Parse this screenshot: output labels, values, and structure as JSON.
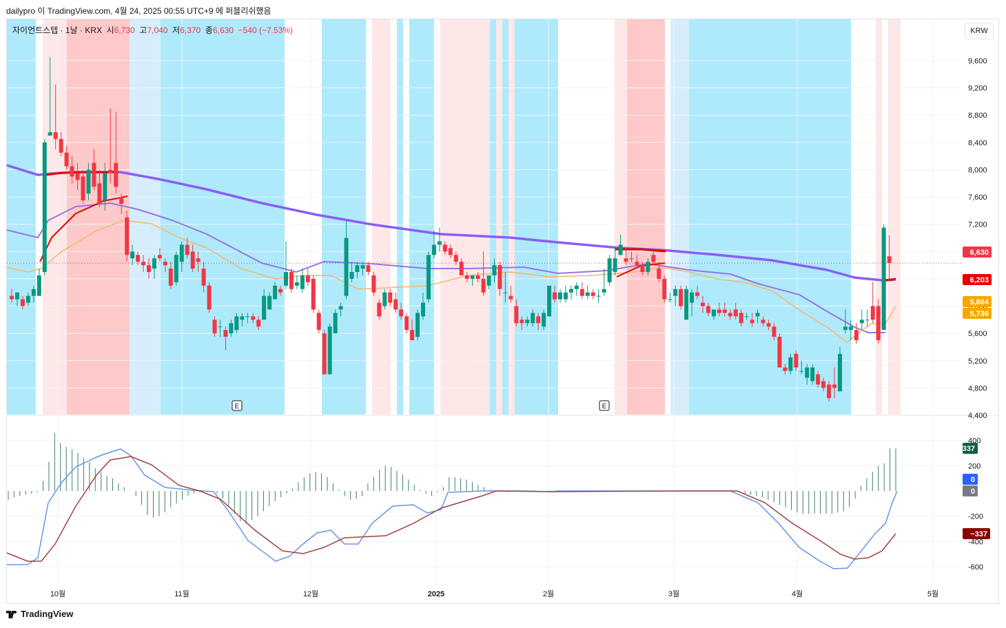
{
  "header": {
    "published_line": "dailypro 이 TradingView.com, 4월 24, 2025 00:55 UTC+9 에 퍼블리쉬했음"
  },
  "legend": {
    "symbol": "자이언트스텝 · 1날 · KRX",
    "open_label": "시",
    "open": "6,730",
    "high_label": "고",
    "high": "7,040",
    "low_label": "저",
    "low": "6,370",
    "close_label": "종",
    "close": "6,630",
    "change": "−540 (−7.53%)"
  },
  "currency": "KRW",
  "footer": {
    "brand": "TradingView"
  },
  "colors": {
    "up": "#089981",
    "down": "#f23645",
    "ma_long": "#8b5cf6",
    "ma_mid": "#9575e6",
    "ma_red": "#e60000",
    "ma_orange": "#f7b56b",
    "macd": "#6495ed",
    "signal": "#a0413d",
    "zone_cyan": "#aeeafc",
    "zone_lightblue": "#d6eefb",
    "zone_pink": "#fde7e7",
    "zone_red": "#fdc9c9"
  },
  "chart_data": [
    {
      "type": "candlestick",
      "title": "자이언트스텝 · 1날 · KRX",
      "x_labels": [
        "10월",
        "11월",
        "12월",
        "2025",
        "2월",
        "3월",
        "4월",
        "5월"
      ],
      "y_ticks": [
        "9,600",
        "9,200",
        "8,800",
        "8,400",
        "8,000",
        "7,600",
        "7,200",
        "6,800",
        "6,400",
        "6,000",
        "5,600",
        "5,200",
        "4,800",
        "4,400"
      ],
      "ylim": [
        4100,
        10200
      ],
      "price_tags": [
        {
          "label": "6,630",
          "color": "#f23645"
        },
        {
          "label": "6,203",
          "color": "#e60000"
        },
        {
          "label": "5,864",
          "color": "#f7a600"
        },
        {
          "label": "5,736",
          "color": "#f7a600"
        }
      ],
      "earnings_markers": [
        "E",
        "E"
      ],
      "candles": [
        {
          "o": 6150,
          "h": 6250,
          "l": 6050,
          "c": 6100
        },
        {
          "o": 6100,
          "h": 6200,
          "l": 6000,
          "c": 6200
        },
        {
          "o": 6100,
          "h": 6150,
          "l": 5950,
          "c": 6000
        },
        {
          "o": 6050,
          "h": 6200,
          "l": 6000,
          "c": 6150
        },
        {
          "o": 6150,
          "h": 6300,
          "l": 6050,
          "c": 6250
        },
        {
          "o": 6150,
          "h": 6550,
          "l": 6150,
          "c": 6450
        },
        {
          "o": 6500,
          "h": 8450,
          "l": 6450,
          "c": 8400
        },
        {
          "o": 8500,
          "h": 9650,
          "l": 8500,
          "c": 8550
        },
        {
          "o": 8550,
          "h": 9250,
          "l": 8300,
          "c": 8450
        },
        {
          "o": 8450,
          "h": 8550,
          "l": 8200,
          "c": 8250
        },
        {
          "o": 8250,
          "h": 8350,
          "l": 8000,
          "c": 8050
        },
        {
          "o": 8050,
          "h": 8200,
          "l": 7800,
          "c": 7900
        },
        {
          "o": 7950,
          "h": 8100,
          "l": 7700,
          "c": 7850
        },
        {
          "o": 7900,
          "h": 8000,
          "l": 7500,
          "c": 7550
        },
        {
          "o": 7650,
          "h": 8100,
          "l": 7550,
          "c": 8000
        },
        {
          "o": 8100,
          "h": 8300,
          "l": 7700,
          "c": 7750
        },
        {
          "o": 7800,
          "h": 8000,
          "l": 7450,
          "c": 7500
        },
        {
          "o": 7550,
          "h": 8100,
          "l": 7400,
          "c": 7950
        },
        {
          "o": 8000,
          "h": 8900,
          "l": 7800,
          "c": 7950
        },
        {
          "o": 8100,
          "h": 8850,
          "l": 7650,
          "c": 7750
        },
        {
          "o": 7600,
          "h": 7650,
          "l": 7350,
          "c": 7500
        },
        {
          "o": 7300,
          "h": 7400,
          "l": 6650,
          "c": 6750
        },
        {
          "o": 6700,
          "h": 6900,
          "l": 6600,
          "c": 6800
        },
        {
          "o": 6750,
          "h": 6800,
          "l": 6600,
          "c": 6650
        },
        {
          "o": 6650,
          "h": 6750,
          "l": 6500,
          "c": 6600
        },
        {
          "o": 6600,
          "h": 6700,
          "l": 6400,
          "c": 6500
        },
        {
          "o": 6550,
          "h": 6750,
          "l": 6400,
          "c": 6700
        },
        {
          "o": 6750,
          "h": 6850,
          "l": 6650,
          "c": 6700
        },
        {
          "o": 6650,
          "h": 6700,
          "l": 6500,
          "c": 6600
        },
        {
          "o": 6550,
          "h": 6650,
          "l": 6250,
          "c": 6300
        },
        {
          "o": 6350,
          "h": 6800,
          "l": 6300,
          "c": 6750
        },
        {
          "o": 6650,
          "h": 6950,
          "l": 6500,
          "c": 6900
        },
        {
          "o": 6900,
          "h": 7000,
          "l": 6700,
          "c": 6750
        },
        {
          "o": 6800,
          "h": 6900,
          "l": 6500,
          "c": 6550
        },
        {
          "o": 6700,
          "h": 6800,
          "l": 6500,
          "c": 6650
        },
        {
          "o": 6550,
          "h": 6650,
          "l": 6200,
          "c": 6300
        },
        {
          "o": 6300,
          "h": 6350,
          "l": 5900,
          "c": 5950
        },
        {
          "o": 5800,
          "h": 5850,
          "l": 5550,
          "c": 5600
        },
        {
          "o": 5700,
          "h": 5800,
          "l": 5550,
          "c": 5700
        },
        {
          "o": 5650,
          "h": 5700,
          "l": 5350,
          "c": 5550
        },
        {
          "o": 5600,
          "h": 5800,
          "l": 5550,
          "c": 5750
        },
        {
          "o": 5650,
          "h": 5900,
          "l": 5600,
          "c": 5850
        },
        {
          "o": 5800,
          "h": 5900,
          "l": 5700,
          "c": 5850
        },
        {
          "o": 5850,
          "h": 5900,
          "l": 5750,
          "c": 5850
        },
        {
          "o": 5850,
          "h": 5900,
          "l": 5750,
          "c": 5800
        },
        {
          "o": 5800,
          "h": 5850,
          "l": 5650,
          "c": 5700
        },
        {
          "o": 5800,
          "h": 6250,
          "l": 5800,
          "c": 6150
        },
        {
          "o": 5950,
          "h": 6200,
          "l": 5950,
          "c": 6150
        },
        {
          "o": 6100,
          "h": 6350,
          "l": 6100,
          "c": 6300
        },
        {
          "o": 6250,
          "h": 6300,
          "l": 6150,
          "c": 6200
        },
        {
          "o": 6300,
          "h": 6950,
          "l": 6250,
          "c": 6500
        },
        {
          "o": 6500,
          "h": 6550,
          "l": 6200,
          "c": 6250
        },
        {
          "o": 6300,
          "h": 6450,
          "l": 6250,
          "c": 6350
        },
        {
          "o": 6250,
          "h": 6550,
          "l": 6200,
          "c": 6450
        },
        {
          "o": 6450,
          "h": 6550,
          "l": 6300,
          "c": 6350
        },
        {
          "o": 6400,
          "h": 6450,
          "l": 5900,
          "c": 5950
        },
        {
          "o": 5900,
          "h": 5950,
          "l": 5600,
          "c": 5650
        },
        {
          "o": 5600,
          "h": 5650,
          "l": 5000,
          "c": 5000
        },
        {
          "o": 5000,
          "h": 5750,
          "l": 5000,
          "c": 5700
        },
        {
          "o": 5600,
          "h": 5950,
          "l": 5600,
          "c": 5900
        },
        {
          "o": 5950,
          "h": 6050,
          "l": 5850,
          "c": 6000
        },
        {
          "o": 6150,
          "h": 7250,
          "l": 6100,
          "c": 7000
        },
        {
          "o": 6400,
          "h": 6650,
          "l": 6350,
          "c": 6500
        },
        {
          "o": 6500,
          "h": 6650,
          "l": 6400,
          "c": 6600
        },
        {
          "o": 6550,
          "h": 6650,
          "l": 6450,
          "c": 6600
        },
        {
          "o": 6600,
          "h": 6650,
          "l": 6450,
          "c": 6500
        },
        {
          "o": 6450,
          "h": 6500,
          "l": 6150,
          "c": 6200
        },
        {
          "o": 6050,
          "h": 6100,
          "l": 5800,
          "c": 5850
        },
        {
          "o": 6000,
          "h": 6250,
          "l": 5950,
          "c": 6200
        },
        {
          "o": 6200,
          "h": 6250,
          "l": 6000,
          "c": 6050
        },
        {
          "o": 6100,
          "h": 6200,
          "l": 5900,
          "c": 5950
        },
        {
          "o": 5950,
          "h": 6050,
          "l": 5800,
          "c": 5850
        },
        {
          "o": 5850,
          "h": 5900,
          "l": 5600,
          "c": 5650
        },
        {
          "o": 5650,
          "h": 5800,
          "l": 5500,
          "c": 5500
        },
        {
          "o": 5550,
          "h": 5950,
          "l": 5500,
          "c": 5900
        },
        {
          "o": 5850,
          "h": 6200,
          "l": 5800,
          "c": 6050
        },
        {
          "o": 6100,
          "h": 6800,
          "l": 6050,
          "c": 6750
        },
        {
          "o": 6750,
          "h": 7100,
          "l": 6700,
          "c": 6900
        },
        {
          "o": 6900,
          "h": 7150,
          "l": 6800,
          "c": 6950
        },
        {
          "o": 6900,
          "h": 6950,
          "l": 6750,
          "c": 6800
        },
        {
          "o": 6850,
          "h": 6900,
          "l": 6700,
          "c": 6750
        },
        {
          "o": 6750,
          "h": 6800,
          "l": 6600,
          "c": 6650
        },
        {
          "o": 6650,
          "h": 6700,
          "l": 6450,
          "c": 6450
        },
        {
          "o": 6450,
          "h": 6500,
          "l": 6350,
          "c": 6400
        },
        {
          "o": 6400,
          "h": 6450,
          "l": 6300,
          "c": 6450
        },
        {
          "o": 6450,
          "h": 6500,
          "l": 6350,
          "c": 6400
        },
        {
          "o": 6400,
          "h": 6800,
          "l": 6150,
          "c": 6200
        },
        {
          "o": 6300,
          "h": 6450,
          "l": 6250,
          "c": 6450
        },
        {
          "o": 6450,
          "h": 6700,
          "l": 6350,
          "c": 6600
        },
        {
          "o": 6600,
          "h": 6650,
          "l": 6150,
          "c": 6250
        },
        {
          "o": 6200,
          "h": 6500,
          "l": 6050,
          "c": 6200
        },
        {
          "o": 6150,
          "h": 6300,
          "l": 6050,
          "c": 6100
        },
        {
          "o": 6000,
          "h": 6100,
          "l": 5700,
          "c": 5750
        },
        {
          "o": 5800,
          "h": 5850,
          "l": 5650,
          "c": 5750
        },
        {
          "o": 5750,
          "h": 5850,
          "l": 5700,
          "c": 5800
        },
        {
          "o": 5750,
          "h": 5950,
          "l": 5700,
          "c": 5900
        },
        {
          "o": 5850,
          "h": 5900,
          "l": 5650,
          "c": 5750
        },
        {
          "o": 5700,
          "h": 5950,
          "l": 5650,
          "c": 5900
        },
        {
          "o": 5850,
          "h": 6250,
          "l": 5850,
          "c": 6300
        },
        {
          "o": 6200,
          "h": 6300,
          "l": 6050,
          "c": 6100
        },
        {
          "o": 6100,
          "h": 6250,
          "l": 6050,
          "c": 6200
        },
        {
          "o": 6100,
          "h": 6300,
          "l": 6050,
          "c": 6200
        },
        {
          "o": 6200,
          "h": 6300,
          "l": 6100,
          "c": 6250
        },
        {
          "o": 6250,
          "h": 6350,
          "l": 6150,
          "c": 6300
        },
        {
          "o": 6250,
          "h": 6350,
          "l": 6100,
          "c": 6150
        },
        {
          "o": 6150,
          "h": 6300,
          "l": 6100,
          "c": 6200
        },
        {
          "o": 6200,
          "h": 6250,
          "l": 6100,
          "c": 6150
        },
        {
          "o": 6150,
          "h": 6250,
          "l": 6050,
          "c": 6150
        },
        {
          "o": 6200,
          "h": 6550,
          "l": 6150,
          "c": 6250
        },
        {
          "o": 6350,
          "h": 6750,
          "l": 6300,
          "c": 6700
        },
        {
          "o": 6500,
          "h": 6850,
          "l": 6450,
          "c": 6700
        },
        {
          "o": 6750,
          "h": 7050,
          "l": 6750,
          "c": 6900
        },
        {
          "o": 6700,
          "h": 6850,
          "l": 6600,
          "c": 6650
        },
        {
          "o": 6700,
          "h": 6800,
          "l": 6650,
          "c": 6700
        },
        {
          "o": 6650,
          "h": 6750,
          "l": 6550,
          "c": 6600
        },
        {
          "o": 6600,
          "h": 6650,
          "l": 6450,
          "c": 6500
        },
        {
          "o": 6500,
          "h": 6700,
          "l": 6450,
          "c": 6650
        },
        {
          "o": 6750,
          "h": 6800,
          "l": 6600,
          "c": 6650
        },
        {
          "o": 6550,
          "h": 6650,
          "l": 6350,
          "c": 6400
        },
        {
          "o": 6400,
          "h": 6450,
          "l": 6050,
          "c": 6100
        },
        {
          "o": 6100,
          "h": 6200,
          "l": 6050,
          "c": 6100
        },
        {
          "o": 6150,
          "h": 6300,
          "l": 6000,
          "c": 6250
        },
        {
          "o": 6250,
          "h": 6300,
          "l": 5950,
          "c": 6000
        },
        {
          "o": 5800,
          "h": 6300,
          "l": 5800,
          "c": 6250
        },
        {
          "o": 6050,
          "h": 6250,
          "l": 5850,
          "c": 6200
        },
        {
          "o": 6200,
          "h": 6300,
          "l": 6100,
          "c": 6150
        },
        {
          "o": 6050,
          "h": 6150,
          "l": 5900,
          "c": 6000
        },
        {
          "o": 6000,
          "h": 6050,
          "l": 5850,
          "c": 5900
        },
        {
          "o": 5850,
          "h": 5950,
          "l": 5800,
          "c": 5950
        },
        {
          "o": 5950,
          "h": 6050,
          "l": 5850,
          "c": 5900
        },
        {
          "o": 5950,
          "h": 6050,
          "l": 5850,
          "c": 5900
        },
        {
          "o": 5900,
          "h": 5950,
          "l": 5800,
          "c": 5850
        },
        {
          "o": 5950,
          "h": 6050,
          "l": 5800,
          "c": 5850
        },
        {
          "o": 5900,
          "h": 5950,
          "l": 5700,
          "c": 5750
        },
        {
          "o": 5850,
          "h": 5900,
          "l": 5800,
          "c": 5850
        },
        {
          "o": 5800,
          "h": 5900,
          "l": 5700,
          "c": 5750
        },
        {
          "o": 5850,
          "h": 5950,
          "l": 5750,
          "c": 5900
        },
        {
          "o": 5800,
          "h": 5850,
          "l": 5700,
          "c": 5750
        },
        {
          "o": 5750,
          "h": 5800,
          "l": 5650,
          "c": 5700
        },
        {
          "o": 5700,
          "h": 5750,
          "l": 5500,
          "c": 5550
        },
        {
          "o": 5550,
          "h": 5600,
          "l": 5100,
          "c": 5100
        },
        {
          "o": 5100,
          "h": 5150,
          "l": 5000,
          "c": 5050
        },
        {
          "o": 5050,
          "h": 5300,
          "l": 5000,
          "c": 5250
        },
        {
          "o": 5300,
          "h": 5350,
          "l": 5050,
          "c": 5100
        },
        {
          "o": 5050,
          "h": 5200,
          "l": 5000,
          "c": 5050
        },
        {
          "o": 4950,
          "h": 5150,
          "l": 4850,
          "c": 5100
        },
        {
          "o": 4900,
          "h": 5150,
          "l": 4850,
          "c": 5100
        },
        {
          "o": 5000,
          "h": 5050,
          "l": 4800,
          "c": 4850
        },
        {
          "o": 4900,
          "h": 4950,
          "l": 4750,
          "c": 4800
        },
        {
          "o": 4850,
          "h": 4900,
          "l": 4600,
          "c": 4650
        },
        {
          "o": 4850,
          "h": 5100,
          "l": 4650,
          "c": 4800
        },
        {
          "o": 4750,
          "h": 5400,
          "l": 4750,
          "c": 5300
        },
        {
          "o": 5650,
          "h": 5950,
          "l": 5600,
          "c": 5700
        },
        {
          "o": 5650,
          "h": 5800,
          "l": 5500,
          "c": 5700
        },
        {
          "o": 5650,
          "h": 5750,
          "l": 5450,
          "c": 5500
        },
        {
          "o": 5750,
          "h": 5950,
          "l": 5650,
          "c": 5800
        },
        {
          "o": 5800,
          "h": 5950,
          "l": 5700,
          "c": 5800
        },
        {
          "o": 6000,
          "h": 6350,
          "l": 5750,
          "c": 5800
        },
        {
          "o": 6000,
          "h": 6100,
          "l": 5450,
          "c": 5500
        },
        {
          "o": 5650,
          "h": 7200,
          "l": 5650,
          "c": 7150
        },
        {
          "o": 6730,
          "h": 7040,
          "l": 6370,
          "c": 6630
        }
      ]
    },
    {
      "type": "bar",
      "title": "",
      "y_ticks": [
        "400",
        "200",
        "-200",
        "-400",
        "-600"
      ],
      "ylim": [
        -730,
        450
      ],
      "value_tags": [
        {
          "label": "337",
          "color": "#0e5e48"
        },
        {
          "label": "0",
          "color": "#2962ff"
        },
        {
          "label": "0",
          "color": "#787b86"
        },
        {
          "label": "−337",
          "color": "#8b0000"
        }
      ]
    }
  ]
}
